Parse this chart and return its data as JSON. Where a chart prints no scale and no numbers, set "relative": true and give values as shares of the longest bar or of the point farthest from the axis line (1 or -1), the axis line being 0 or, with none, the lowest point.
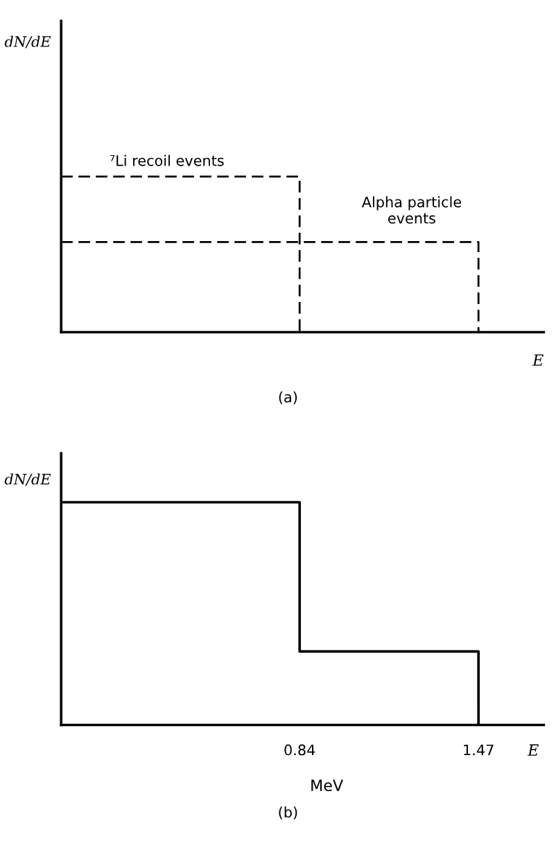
{
  "chart_data": [
    {
      "type": "step",
      "title": "(a)",
      "ylabel": "dN/dE",
      "xlabel": "E",
      "relative": true,
      "xlim": [
        0,
        1.7
      ],
      "tick_labels": false,
      "grid": false,
      "line_style": "dashed",
      "series": [
        {
          "name": "⁷Li recoil events",
          "color": "#000000",
          "x": [
            0,
            0.84
          ],
          "values": [
            1,
            0
          ]
        },
        {
          "name": "Alpha particle\nevents",
          "color": "#000000",
          "x": [
            0,
            1.47
          ],
          "values": [
            0.58,
            0
          ]
        }
      ]
    },
    {
      "type": "step",
      "title": "(b)",
      "ylabel": "dN/dE",
      "xlabel": "MeV",
      "annotations": [
        "E"
      ],
      "relative": true,
      "xlim": [
        0,
        1.7
      ],
      "xticks": [
        0.84,
        1.47
      ],
      "tick_labels": "x",
      "grid": false,
      "line_style": "solid",
      "series": [
        {
          "color": "#000000",
          "x": [
            0,
            0.84,
            1.47
          ],
          "values": [
            1,
            0.33,
            0
          ]
        }
      ]
    }
  ]
}
